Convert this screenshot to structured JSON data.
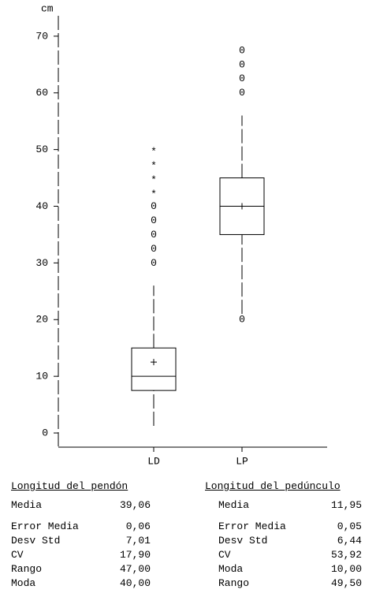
{
  "chart_data": {
    "type": "box",
    "y_label": "cm",
    "categories": [
      "LD",
      "LP"
    ],
    "ylim": [
      -2.5,
      73.6
    ],
    "yticks": [
      0,
      10,
      20,
      30,
      40,
      50,
      60,
      70
    ],
    "outlier_symbol": "0",
    "extreme_symbol": "*",
    "series": [
      {
        "whisker_low": 1.25,
        "q1": 7.5,
        "median": 10,
        "mean": 12.5,
        "q3": 15,
        "whisker_high": 26,
        "outliers": [
          30,
          32.5,
          35,
          37.5,
          40
        ],
        "extremes": [
          42.5,
          45,
          47.5,
          50
        ]
      },
      {
        "whisker_low": 21,
        "q1": 35,
        "median": 40,
        "mean": 40,
        "q3": 45,
        "whisker_high": 56,
        "outliers": [
          20,
          60,
          62.5,
          65,
          67.5
        ],
        "extremes": []
      }
    ]
  },
  "stats": [
    {
      "title": "Longitud del pendón",
      "rows": [
        [
          "Media",
          "39,06"
        ],
        [
          "Error Media",
          "0,06"
        ],
        [
          "Desv Std",
          "7,01"
        ],
        [
          "CV",
          "17,90"
        ],
        [
          "Rango",
          "47,00"
        ],
        [
          "Moda",
          "40,00"
        ]
      ]
    },
    {
      "title": "Longitud del pedúnculo",
      "rows": [
        [
          "Media",
          "11,95"
        ],
        [
          "Error Media",
          "0,05"
        ],
        [
          "Desv Std",
          "6,44"
        ],
        [
          "CV",
          "53,92"
        ],
        [
          "Moda",
          "10,00"
        ],
        [
          "Rango",
          "49,50"
        ]
      ]
    }
  ]
}
